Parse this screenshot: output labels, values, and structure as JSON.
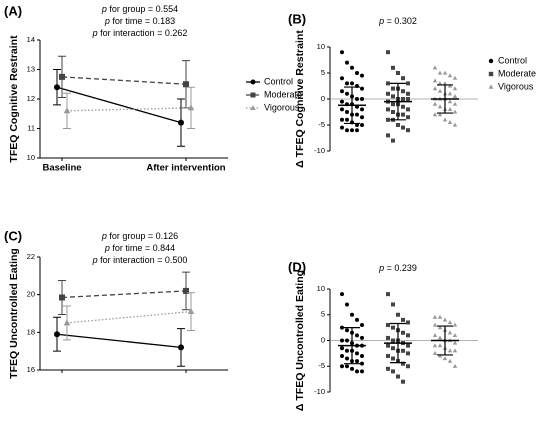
{
  "chart_data": [
    {
      "type": "line",
      "title": "(A)",
      "ylabel": "TFEQ Cognitive Restraint",
      "annotations": [
        "p for group = 0.554",
        "p for time = 0.183",
        "p for interaction = 0.262"
      ],
      "categories": [
        "Baseline",
        "After intervention"
      ],
      "ylim": [
        10,
        14
      ],
      "yticks": [
        10,
        11,
        12,
        13,
        14
      ],
      "legend": true,
      "series": [
        {
          "name": "Control",
          "color": "#000000",
          "marker": "circle",
          "dash": "solid",
          "values": [
            12.4,
            11.2
          ],
          "errors": [
            0.6,
            0.8
          ]
        },
        {
          "name": "Moderate",
          "color": "#444444",
          "marker": "square",
          "dash": "dashed",
          "values": [
            12.75,
            12.5
          ],
          "errors": [
            0.7,
            0.8
          ]
        },
        {
          "name": "Vigorous",
          "color": "#999999",
          "marker": "triangle",
          "dash": "dotted",
          "values": [
            11.6,
            11.7
          ],
          "errors": [
            0.6,
            0.7
          ]
        }
      ]
    },
    {
      "type": "dotplot",
      "title": "(B)",
      "ylabel": "Δ TFEQ Cognitive Restraint",
      "annotations": [
        "p = 0.302"
      ],
      "ylim": [
        -10,
        10
      ],
      "yticks": [
        -10,
        -5,
        0,
        5,
        10
      ],
      "legend": true,
      "series": [
        {
          "name": "Control",
          "color": "#000000",
          "marker": "circle",
          "mean": -1.2,
          "sd": 3.5,
          "values": [
            9,
            7,
            6,
            5,
            4.5,
            4,
            3,
            3,
            2.5,
            2,
            1.5,
            1,
            0.5,
            0,
            0,
            -0.5,
            -1,
            -1,
            -1.5,
            -2,
            -2,
            -2.5,
            -3,
            -3,
            -3.5,
            -4,
            -4,
            -4.5,
            -5,
            -5,
            -5.5,
            -6,
            -6,
            -6
          ]
        },
        {
          "name": "Moderate",
          "color": "#444444",
          "marker": "square",
          "mean": -0.5,
          "sd": 3.5,
          "values": [
            9,
            6,
            5,
            4,
            3,
            3,
            2,
            2,
            1.5,
            1,
            1,
            0.5,
            0,
            0,
            0,
            -0.5,
            -1,
            -1,
            -1.5,
            -2,
            -2,
            -2.5,
            -3,
            -3,
            -3.5,
            -4,
            -4,
            -5,
            -5.5,
            -6,
            -7,
            -8
          ]
        },
        {
          "name": "Vigorous",
          "color": "#999999",
          "marker": "triangle",
          "mean": 0,
          "sd": 2.7,
          "values": [
            6,
            5,
            5,
            4.5,
            4,
            3.5,
            3,
            3,
            2.5,
            2,
            2,
            1.5,
            1,
            1,
            0.5,
            0,
            0,
            0,
            -0.5,
            -1,
            -1,
            -1.5,
            -2,
            -2,
            -2.5,
            -3,
            -3,
            -4,
            -4.5,
            -5
          ]
        }
      ]
    },
    {
      "type": "line",
      "title": "(C)",
      "ylabel": "TFEQ Uncontrolled Eating",
      "annotations": [
        "p for group = 0.126",
        "p for time = 0.844",
        "p for interaction = 0.500"
      ],
      "categories": [
        null,
        null
      ],
      "ylim": [
        16,
        22
      ],
      "yticks": [
        16,
        18,
        20,
        22
      ],
      "legend": false,
      "series": [
        {
          "color": "#000000",
          "marker": "circle",
          "dash": "solid",
          "values": [
            17.9,
            17.2
          ],
          "errors": [
            0.9,
            1.0
          ]
        },
        {
          "color": "#444444",
          "marker": "square",
          "dash": "dashed",
          "values": [
            19.85,
            20.2
          ],
          "errors": [
            0.9,
            1.0
          ]
        },
        {
          "color": "#999999",
          "marker": "triangle",
          "dash": "dotted",
          "values": [
            18.5,
            19.1
          ],
          "errors": [
            0.9,
            1.0
          ]
        }
      ]
    },
    {
      "type": "dotplot",
      "title": "(D)",
      "ylabel": "Δ TFEQ Uncontrolled Eating",
      "annotations": [
        "p = 0.239"
      ],
      "ylim": [
        -10,
        10
      ],
      "yticks": [
        -10,
        -5,
        0,
        5,
        10
      ],
      "legend": false,
      "series": [
        {
          "color": "#000000",
          "marker": "circle",
          "mean": -1.0,
          "sd": 3.5,
          "values": [
            9,
            7,
            5,
            4,
            3,
            2.5,
            2,
            1.5,
            1,
            0.5,
            0,
            0,
            -0.5,
            -1,
            -1,
            -1.5,
            -2,
            -2,
            -2.5,
            -3,
            -3,
            -3.5,
            -4,
            -4,
            -4.5,
            -5,
            -5,
            -5.5,
            -6,
            -6
          ]
        },
        {
          "color": "#444444",
          "marker": "square",
          "mean": -0.5,
          "sd": 3.8,
          "values": [
            9,
            7,
            5,
            4,
            3.5,
            3,
            2.5,
            2,
            1.5,
            1,
            0.5,
            0,
            0,
            -0.5,
            -1,
            -1,
            -1.5,
            -2,
            -2,
            -2.5,
            -3,
            -3.5,
            -4,
            -4.5,
            -5,
            -5.5,
            -6,
            -7,
            -8
          ]
        },
        {
          "color": "#999999",
          "marker": "triangle",
          "mean": 0,
          "sd": 2.8,
          "values": [
            4.5,
            4.5,
            4,
            3.5,
            3,
            3,
            2.5,
            2,
            1.5,
            1,
            1,
            0.5,
            0,
            0,
            -0.5,
            -1,
            -1,
            -1.5,
            -2,
            -2,
            -2.5,
            -3,
            -3.5,
            -4,
            -5
          ]
        }
      ]
    }
  ]
}
